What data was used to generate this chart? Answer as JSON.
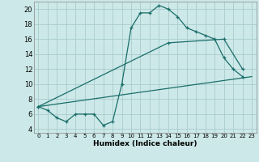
{
  "title": "",
  "xlabel": "Humidex (Indice chaleur)",
  "ylabel": "",
  "bg_color": "#cce8e8",
  "grid_color": "#aacccc",
  "line_color": "#1a6e6a",
  "xlim": [
    -0.5,
    23.5
  ],
  "ylim": [
    3.5,
    21
  ],
  "yticks": [
    4,
    6,
    8,
    10,
    12,
    14,
    16,
    18,
    20
  ],
  "xticks": [
    0,
    1,
    2,
    3,
    4,
    5,
    6,
    7,
    8,
    9,
    10,
    11,
    12,
    13,
    14,
    15,
    16,
    17,
    18,
    19,
    20,
    21,
    22,
    23
  ],
  "series0_x": [
    0,
    1,
    2,
    3,
    4,
    5,
    6,
    7,
    8,
    9,
    10,
    11,
    12,
    13,
    14,
    15,
    16,
    17,
    18,
    19,
    20,
    21,
    22
  ],
  "series0_y": [
    7,
    6.5,
    5.5,
    5,
    6,
    6,
    6,
    4.5,
    5,
    10,
    17.5,
    19.5,
    19.5,
    20.5,
    20,
    19,
    17.5,
    17,
    16.5,
    16,
    13.5,
    12,
    11
  ],
  "series1_x": [
    0,
    23
  ],
  "series1_y": [
    7,
    11
  ],
  "series2_x": [
    0,
    14,
    20,
    22
  ],
  "series2_y": [
    7,
    15.5,
    16,
    12
  ]
}
